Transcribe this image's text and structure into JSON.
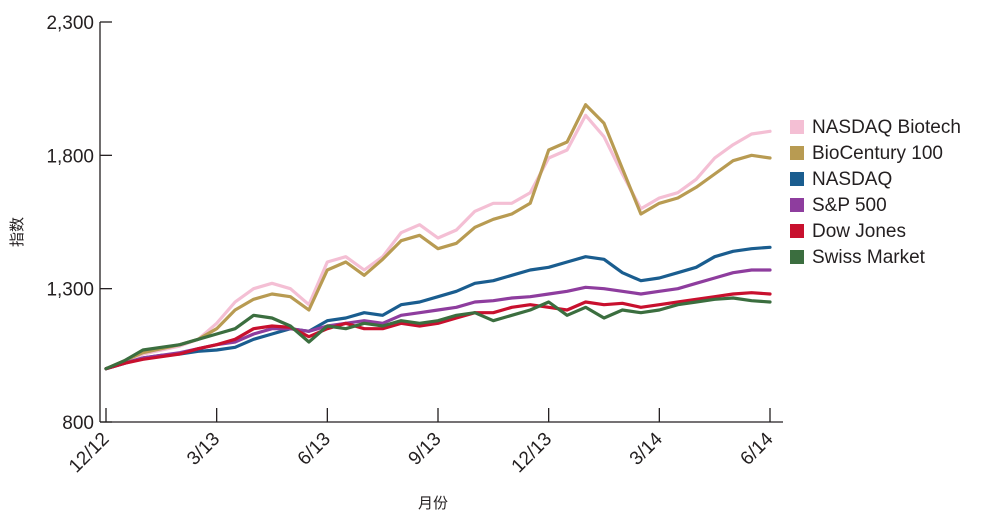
{
  "chart_data": {
    "type": "line",
    "title": "",
    "xlabel": "月份",
    "ylabel": "指数",
    "ylim": [
      800,
      2300
    ],
    "y_ticks": [
      "2,300",
      "1,800",
      "1,300",
      "800"
    ],
    "y_tick_values": [
      2300,
      1800,
      1300,
      800
    ],
    "x_tick_labels": [
      "12/12",
      "3/13",
      "6/13",
      "9/13",
      "12/13",
      "3/14",
      "6/14"
    ],
    "x_range_months": [
      0,
      18
    ],
    "legend_position": "right",
    "grid": false,
    "series": [
      {
        "name": "NASDAQ Biotech",
        "color": "#f4bfd4",
        "points": [
          [
            0,
            1000
          ],
          [
            0.5,
            1020
          ],
          [
            1,
            1055
          ],
          [
            1.5,
            1070
          ],
          [
            2,
            1085
          ],
          [
            2.5,
            1110
          ],
          [
            3,
            1170
          ],
          [
            3.5,
            1250
          ],
          [
            4,
            1300
          ],
          [
            4.5,
            1320
          ],
          [
            5,
            1300
          ],
          [
            5.5,
            1240
          ],
          [
            6,
            1400
          ],
          [
            6.5,
            1420
          ],
          [
            7,
            1370
          ],
          [
            7.5,
            1420
          ],
          [
            8,
            1510
          ],
          [
            8.5,
            1540
          ],
          [
            9,
            1490
          ],
          [
            9.5,
            1520
          ],
          [
            10,
            1590
          ],
          [
            10.5,
            1620
          ],
          [
            11,
            1620
          ],
          [
            11.5,
            1660
          ],
          [
            12,
            1790
          ],
          [
            12.5,
            1820
          ],
          [
            13,
            1950
          ],
          [
            13.5,
            1870
          ],
          [
            14,
            1730
          ],
          [
            14.5,
            1600
          ],
          [
            15,
            1640
          ],
          [
            15.5,
            1660
          ],
          [
            16,
            1710
          ],
          [
            16.5,
            1790
          ],
          [
            17,
            1840
          ],
          [
            17.5,
            1880
          ],
          [
            18,
            1890
          ]
        ]
      },
      {
        "name": "BioCentury 100",
        "color": "#b89b52",
        "points": [
          [
            0,
            1000
          ],
          [
            0.5,
            1030
          ],
          [
            1,
            1060
          ],
          [
            1.5,
            1075
          ],
          [
            2,
            1090
          ],
          [
            2.5,
            1110
          ],
          [
            3,
            1150
          ],
          [
            3.5,
            1220
          ],
          [
            4,
            1260
          ],
          [
            4.5,
            1280
          ],
          [
            5,
            1270
          ],
          [
            5.5,
            1220
          ],
          [
            6,
            1370
          ],
          [
            6.5,
            1400
          ],
          [
            7,
            1350
          ],
          [
            7.5,
            1410
          ],
          [
            8,
            1480
          ],
          [
            8.5,
            1500
          ],
          [
            9,
            1450
          ],
          [
            9.5,
            1470
          ],
          [
            10,
            1530
          ],
          [
            10.5,
            1560
          ],
          [
            11,
            1580
          ],
          [
            11.5,
            1620
          ],
          [
            12,
            1820
          ],
          [
            12.5,
            1850
          ],
          [
            13,
            1990
          ],
          [
            13.5,
            1920
          ],
          [
            14,
            1750
          ],
          [
            14.5,
            1580
          ],
          [
            15,
            1620
          ],
          [
            15.5,
            1640
          ],
          [
            16,
            1680
          ],
          [
            16.5,
            1730
          ],
          [
            17,
            1780
          ],
          [
            17.5,
            1800
          ],
          [
            18,
            1790
          ]
        ]
      },
      {
        "name": "NASDAQ",
        "color": "#1a5d8f",
        "points": [
          [
            0,
            1000
          ],
          [
            0.5,
            1020
          ],
          [
            1,
            1040
          ],
          [
            1.5,
            1050
          ],
          [
            2,
            1055
          ],
          [
            2.5,
            1065
          ],
          [
            3,
            1070
          ],
          [
            3.5,
            1080
          ],
          [
            4,
            1110
          ],
          [
            4.5,
            1130
          ],
          [
            5,
            1150
          ],
          [
            5.5,
            1140
          ],
          [
            6,
            1180
          ],
          [
            6.5,
            1190
          ],
          [
            7,
            1210
          ],
          [
            7.5,
            1200
          ],
          [
            8,
            1240
          ],
          [
            8.5,
            1250
          ],
          [
            9,
            1270
          ],
          [
            9.5,
            1290
          ],
          [
            10,
            1320
          ],
          [
            10.5,
            1330
          ],
          [
            11,
            1350
          ],
          [
            11.5,
            1370
          ],
          [
            12,
            1380
          ],
          [
            12.5,
            1400
          ],
          [
            13,
            1420
          ],
          [
            13.5,
            1410
          ],
          [
            14,
            1360
          ],
          [
            14.5,
            1330
          ],
          [
            15,
            1340
          ],
          [
            15.5,
            1360
          ],
          [
            16,
            1380
          ],
          [
            16.5,
            1420
          ],
          [
            17,
            1440
          ],
          [
            17.5,
            1450
          ],
          [
            18,
            1455
          ]
        ]
      },
      {
        "name": "S&P 500",
        "color": "#8e3d9e",
        "points": [
          [
            0,
            1000
          ],
          [
            0.5,
            1020
          ],
          [
            1,
            1040
          ],
          [
            1.5,
            1050
          ],
          [
            2,
            1060
          ],
          [
            2.5,
            1075
          ],
          [
            3,
            1090
          ],
          [
            3.5,
            1100
          ],
          [
            4,
            1130
          ],
          [
            4.5,
            1150
          ],
          [
            5,
            1150
          ],
          [
            5.5,
            1140
          ],
          [
            6,
            1160
          ],
          [
            6.5,
            1170
          ],
          [
            7,
            1180
          ],
          [
            7.5,
            1170
          ],
          [
            8,
            1200
          ],
          [
            8.5,
            1210
          ],
          [
            9,
            1220
          ],
          [
            9.5,
            1230
          ],
          [
            10,
            1250
          ],
          [
            10.5,
            1255
          ],
          [
            11,
            1265
          ],
          [
            11.5,
            1270
          ],
          [
            12,
            1280
          ],
          [
            12.5,
            1290
          ],
          [
            13,
            1305
          ],
          [
            13.5,
            1300
          ],
          [
            14,
            1290
          ],
          [
            14.5,
            1280
          ],
          [
            15,
            1290
          ],
          [
            15.5,
            1300
          ],
          [
            16,
            1320
          ],
          [
            16.5,
            1340
          ],
          [
            17,
            1360
          ],
          [
            17.5,
            1370
          ],
          [
            18,
            1370
          ]
        ]
      },
      {
        "name": "Dow Jones",
        "color": "#c8102e",
        "points": [
          [
            0,
            1000
          ],
          [
            0.5,
            1020
          ],
          [
            1,
            1035
          ],
          [
            1.5,
            1045
          ],
          [
            2,
            1055
          ],
          [
            2.5,
            1075
          ],
          [
            3,
            1090
          ],
          [
            3.5,
            1110
          ],
          [
            4,
            1150
          ],
          [
            4.5,
            1160
          ],
          [
            5,
            1155
          ],
          [
            5.5,
            1120
          ],
          [
            6,
            1150
          ],
          [
            6.5,
            1170
          ],
          [
            7,
            1150
          ],
          [
            7.5,
            1150
          ],
          [
            8,
            1170
          ],
          [
            8.5,
            1160
          ],
          [
            9,
            1170
          ],
          [
            9.5,
            1190
          ],
          [
            10,
            1210
          ],
          [
            10.5,
            1210
          ],
          [
            11,
            1230
          ],
          [
            11.5,
            1240
          ],
          [
            12,
            1230
          ],
          [
            12.5,
            1220
          ],
          [
            13,
            1250
          ],
          [
            13.5,
            1240
          ],
          [
            14,
            1245
          ],
          [
            14.5,
            1230
          ],
          [
            15,
            1240
          ],
          [
            15.5,
            1250
          ],
          [
            16,
            1260
          ],
          [
            16.5,
            1270
          ],
          [
            17,
            1280
          ],
          [
            17.5,
            1285
          ],
          [
            18,
            1280
          ]
        ]
      },
      {
        "name": "Swiss Market",
        "color": "#3b6e3f",
        "points": [
          [
            0,
            1000
          ],
          [
            0.5,
            1030
          ],
          [
            1,
            1070
          ],
          [
            1.5,
            1080
          ],
          [
            2,
            1090
          ],
          [
            2.5,
            1110
          ],
          [
            3,
            1130
          ],
          [
            3.5,
            1150
          ],
          [
            4,
            1200
          ],
          [
            4.5,
            1190
          ],
          [
            5,
            1160
          ],
          [
            5.5,
            1100
          ],
          [
            6,
            1160
          ],
          [
            6.5,
            1150
          ],
          [
            7,
            1170
          ],
          [
            7.5,
            1160
          ],
          [
            8,
            1180
          ],
          [
            8.5,
            1170
          ],
          [
            9,
            1180
          ],
          [
            9.5,
            1200
          ],
          [
            10,
            1210
          ],
          [
            10.5,
            1180
          ],
          [
            11,
            1200
          ],
          [
            11.5,
            1220
          ],
          [
            12,
            1250
          ],
          [
            12.5,
            1200
          ],
          [
            13,
            1230
          ],
          [
            13.5,
            1190
          ],
          [
            14,
            1220
          ],
          [
            14.5,
            1210
          ],
          [
            15,
            1220
          ],
          [
            15.5,
            1240
          ],
          [
            16,
            1250
          ],
          [
            16.5,
            1260
          ],
          [
            17,
            1265
          ],
          [
            17.5,
            1255
          ],
          [
            18,
            1250
          ]
        ]
      }
    ]
  }
}
